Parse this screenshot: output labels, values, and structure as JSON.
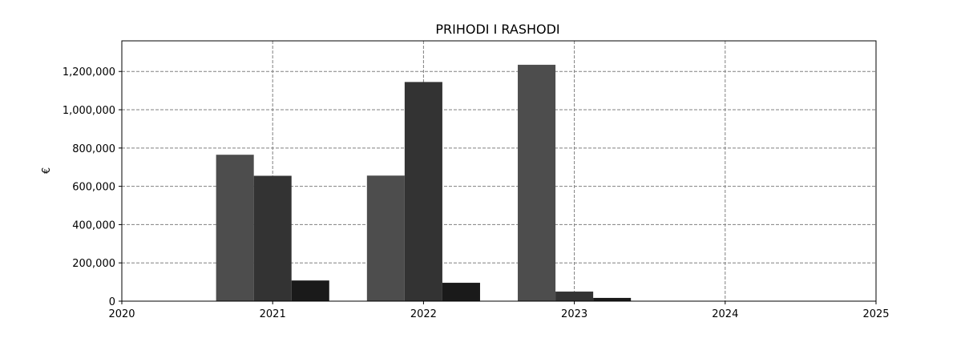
{
  "chart_data": {
    "type": "bar",
    "title": "PRIHODI I RASHODI",
    "xlabel": "",
    "ylabel": "€",
    "x": [
      2021,
      2022,
      2023
    ],
    "xlim": [
      2020,
      2025
    ],
    "ylim": [
      0,
      1360000
    ],
    "xticks": [
      "2020",
      "2021",
      "2022",
      "2023",
      "2024",
      "2025"
    ],
    "yticks": [
      "0",
      "200,000",
      "400,000",
      "600,000",
      "800,000",
      "1,000,000",
      "1,200,000"
    ],
    "grid": true,
    "series": [
      {
        "values": [
          765000,
          656000,
          1235000
        ],
        "color": "#4d4d4d"
      },
      {
        "values": [
          655000,
          1145000,
          50000
        ],
        "color": "#333333"
      },
      {
        "values": [
          108000,
          96000,
          17000
        ],
        "color": "#1a1a1a"
      }
    ]
  }
}
